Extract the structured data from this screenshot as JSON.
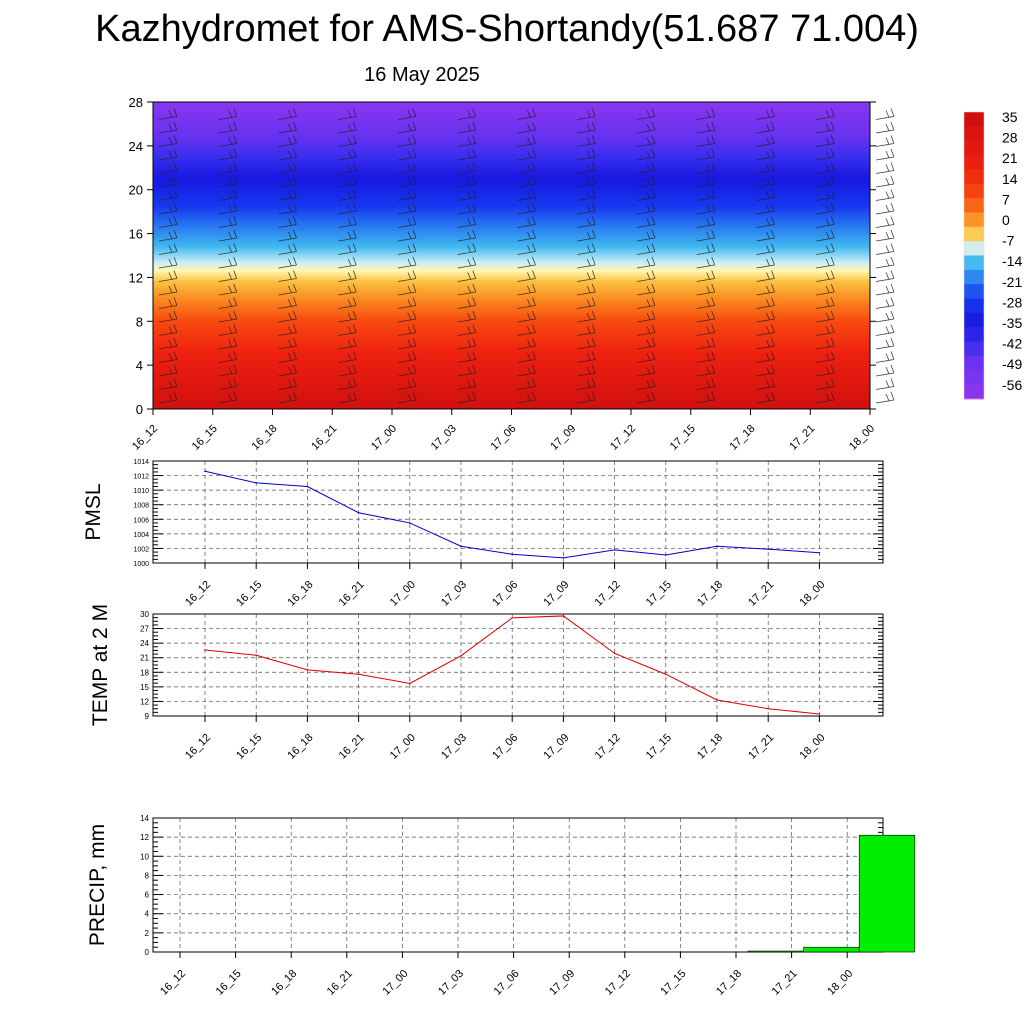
{
  "title": "Kazhydromet for AMS-Shortandy(51.687 71.004)",
  "subtitle": "16 May 2025",
  "time_labels": [
    "16_12",
    "16_15",
    "16_18",
    "16_21",
    "17_00",
    "17_03",
    "17_06",
    "17_09",
    "17_12",
    "17_15",
    "17_18",
    "17_21",
    "18_00"
  ],
  "chart_data": [
    {
      "type": "heatmap",
      "yticks": [
        0,
        4,
        8,
        12,
        16,
        20,
        24,
        28
      ],
      "ylim": [
        0,
        28
      ],
      "colorbar_labels": [
        "35",
        "28",
        "21",
        "14",
        "7",
        "0",
        "-7",
        "-14",
        "-21",
        "-28",
        "-35",
        "-42",
        "-49",
        "-56"
      ],
      "color_stops": [
        {
          "v": 0,
          "c": "#d01010"
        },
        {
          "v": 5,
          "c": "#ee2010"
        },
        {
          "v": 8,
          "c": "#f84a10"
        },
        {
          "v": 10,
          "c": "#fa8a20"
        },
        {
          "v": 11.6,
          "c": "#fcc040"
        },
        {
          "v": 12.6,
          "c": "#fff7b0"
        },
        {
          "v": 13.4,
          "c": "#c8ecf8"
        },
        {
          "v": 14.8,
          "c": "#40b8f0"
        },
        {
          "v": 16.5,
          "c": "#2a7ef0"
        },
        {
          "v": 18.5,
          "c": "#1638f0"
        },
        {
          "v": 21,
          "c": "#1818e0"
        },
        {
          "v": 23,
          "c": "#3a2ef0"
        },
        {
          "v": 25,
          "c": "#6a32f0"
        },
        {
          "v": 28,
          "c": "#8a36f0"
        }
      ]
    },
    {
      "type": "line",
      "ylabel": "PMSL",
      "ylim": [
        1000,
        1014
      ],
      "yticks": [
        1000,
        1002,
        1004,
        1006,
        1008,
        1010,
        1012,
        1014
      ],
      "color": "#0000cc",
      "values": [
        1012.6,
        1011.0,
        1010.5,
        1006.9,
        1005.5,
        1002.3,
        1001.2,
        1000.7,
        1001.8,
        1001.1,
        1002.3,
        1001.9,
        1001.4
      ]
    },
    {
      "type": "line",
      "ylabel": "TEMP at 2 M",
      "ylim": [
        9,
        30
      ],
      "yticks": [
        9,
        12,
        15,
        18,
        21,
        24,
        27,
        30
      ],
      "color": "#dd0000",
      "values": [
        22.6,
        21.5,
        18.5,
        17.6,
        15.7,
        21.4,
        29.2,
        29.6,
        21.9,
        17.6,
        12.3,
        10.5,
        9.4
      ]
    },
    {
      "type": "bar",
      "ylabel": "PRECIP, mm",
      "ylim": [
        0,
        14
      ],
      "yticks": [
        0,
        2,
        4,
        6,
        8,
        10,
        12,
        14
      ],
      "color": "#00ee00",
      "values": [
        0,
        0,
        0,
        0,
        0,
        0,
        0,
        0,
        0,
        0,
        0.1,
        0.5,
        12.2
      ]
    }
  ]
}
